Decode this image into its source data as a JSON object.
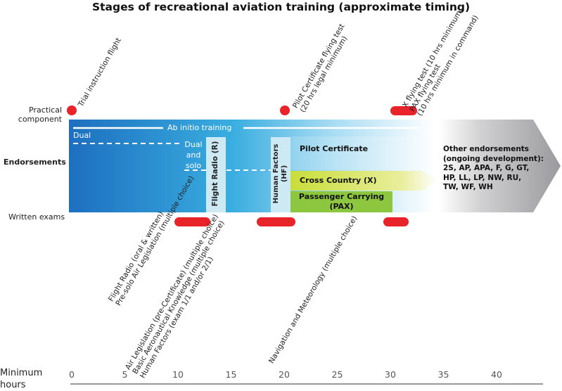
{
  "title": "Stages of recreational aviation training (approximate timing)",
  "rows": {
    "practical_line1": "Practical",
    "practical_line2": "component",
    "endorsements": "Endorsements",
    "written": "Written exams"
  },
  "band": {
    "ab_initio": "Ab initio training",
    "dual": "Dual",
    "dual_solo_1": "Dual",
    "dual_solo_2": "and",
    "dual_solo_3": "solo",
    "flight_radio": "Flight Radio (R)",
    "human_factors_1": "Human Factors",
    "human_factors_2": "(HF)",
    "pilot_certificate": "Pilot Certificate",
    "cross_country": "Cross Country (X)",
    "passenger_carrying_1": "Passenger Carrying",
    "passenger_carrying_2": "(PAX)"
  },
  "other": {
    "line1": "Other endorsements",
    "line2": "(ongoing development):",
    "line3": "2S, AP, APA, F, G, GT,",
    "line4": "HP, LL, LP, NW, RU,",
    "line5": "TW, WF, WH"
  },
  "practical": {
    "trial": "Trial instruction flight",
    "pc_1": "Pilot Certificate flying test",
    "pc_2": "(20 hrs legal minimum)",
    "xpax_1": "X flying test (10 hrs minimum)",
    "xpax_2": "PAX flying test",
    "xpax_3": "(10 hrs minimum in command)"
  },
  "written": {
    "fr_1": "Flight Radio (oral & written)",
    "fr_2": "Pre-solo Air Legislation (multiple choice)",
    "al_1": "Air Legislation (pre-Certificate) (multiple choice)",
    "al_2": "Basic Aeronautical Knowledge (multiple choice)",
    "al_3": "Human Factors (exam 1/1 and/or 2/1)",
    "nav": "Navigation and Meteorology (multiple choice)"
  },
  "axis": {
    "title_1": "Minimum",
    "title_2": "hours",
    "ticks": [
      "0",
      "5",
      "10",
      "15",
      "20",
      "25",
      "30",
      "35",
      "40"
    ]
  },
  "colors": {
    "marker": "#e8232a",
    "band_start": "#1d6fbf",
    "band_mid": "#3aaee0",
    "column": "#cde9f3",
    "passenger": "#8dc63f",
    "cross_country": "#c9dd3a",
    "grey_arrow": "#9a9a9e"
  }
}
